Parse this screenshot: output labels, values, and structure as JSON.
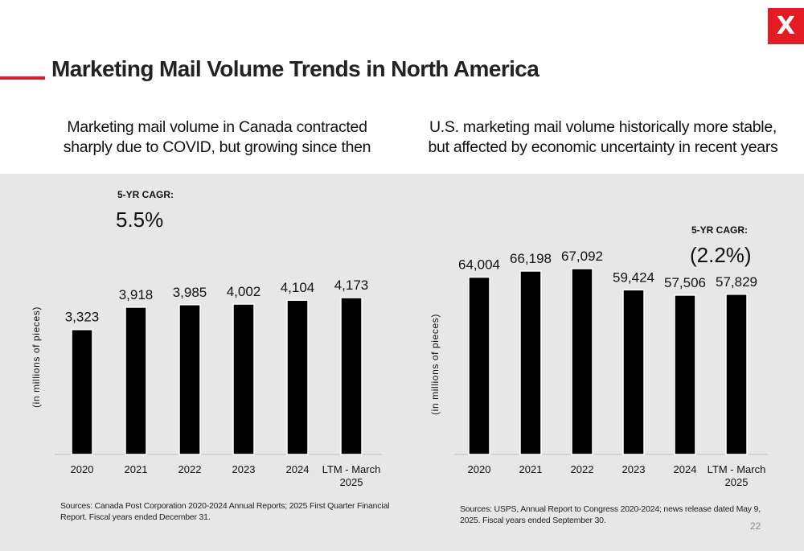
{
  "brand": {
    "logo_text": "X",
    "accent_color": "#e31b23"
  },
  "page": {
    "title": "Marketing Mail Volume Trends in North America",
    "page_number": "22"
  },
  "left": {
    "subtitle": "Marketing mail volume in Canada contracted sharply due to COVID, but growing since then",
    "source": "Sources: Canada Post Corporation 2020-2024 Annual Reports; 2025 First Quarter Financial Report. Fiscal years ended December 31."
  },
  "right": {
    "subtitle": "U.S. marketing mail volume historically more stable, but affected by economic uncertainty in recent years",
    "source": "Sources: USPS, Annual Report to Congress 2020-2024; news release dated May 9, 2025. Fiscal years ended September 30."
  },
  "chart_data": [
    {
      "type": "bar",
      "categories": [
        "2020",
        "2021",
        "2022",
        "2023",
        "2024",
        "LTM - March 2025"
      ],
      "values": [
        3323,
        3918,
        3985,
        4002,
        4104,
        4173
      ],
      "value_labels": [
        "3,323",
        "3,918",
        "3,985",
        "4,002",
        "4,104",
        "4,173"
      ],
      "ylabel": "(in millions of pieces)",
      "ylim": [
        0,
        5500
      ],
      "bar_color": "#000000",
      "grid": false,
      "annotation": {
        "label": "5-YR CAGR:",
        "value": "5.5%"
      }
    },
    {
      "type": "bar",
      "categories": [
        "2020",
        "2021",
        "2022",
        "2023",
        "2024",
        "LTM - March 2025"
      ],
      "values": [
        64004,
        66198,
        67092,
        59424,
        57506,
        57829
      ],
      "value_labels": [
        "64,004",
        "66,198",
        "67,092",
        "59,424",
        "57,506",
        "57,829"
      ],
      "ylabel": "(in millions of pieces)",
      "ylim": [
        0,
        90000
      ],
      "bar_color": "#000000",
      "grid": false,
      "annotation": {
        "label": "5-YR CAGR:",
        "value": "(2.2%)"
      }
    }
  ]
}
